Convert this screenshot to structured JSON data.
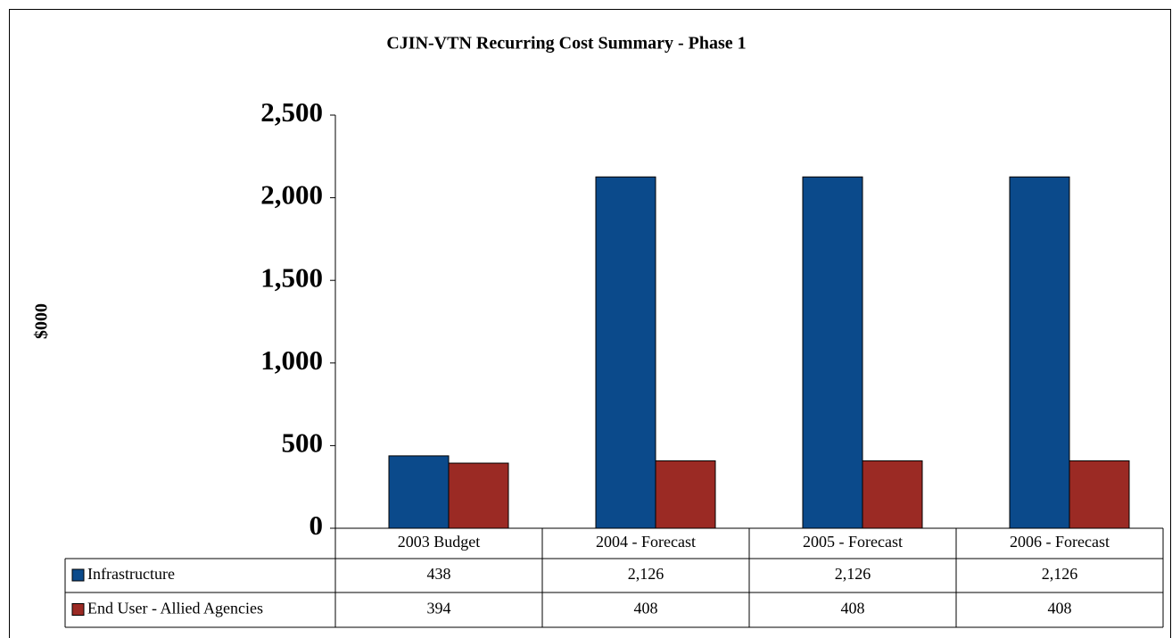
{
  "chart_data": {
    "type": "bar",
    "title": "CJIN-VTN Recurring Cost Summary - Phase 1",
    "y_label": "$000",
    "categories": [
      "2003 Budget",
      "2004 - Forecast",
      "2005 - Forecast",
      "2006 - Forecast"
    ],
    "series": [
      {
        "name": "Infrastructure",
        "color": "#0b4a8b",
        "values": [
          438,
          2126,
          2126,
          2126
        ],
        "value_labels": [
          "438",
          "2,126",
          "2,126",
          "2,126"
        ]
      },
      {
        "name": "End User - Allied Agencies",
        "color": "#9b2a24",
        "values": [
          394,
          408,
          408,
          408
        ]
      }
    ],
    "ylim": [
      0,
      2500
    ],
    "yticks": [
      0,
      500,
      {
        "value": 1000,
        "label": "1,000"
      },
      {
        "value": 1500,
        "label": "1,500"
      },
      {
        "value": 2000,
        "label": "2,000"
      },
      {
        "value": 2500,
        "label": "2,500"
      }
    ]
  }
}
